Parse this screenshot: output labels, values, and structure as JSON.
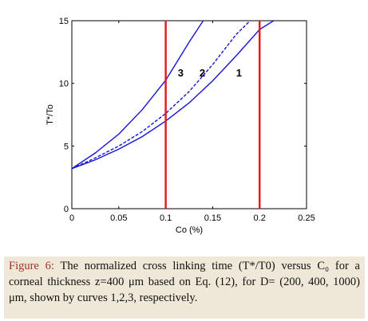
{
  "chart_data": {
    "type": "line",
    "xlabel": "Co (%)",
    "ylabel": "T*/To",
    "xlim": [
      0,
      0.25
    ],
    "ylim": [
      0,
      15
    ],
    "xticks": [
      "0",
      "0.05",
      "0.1",
      "0.15",
      "0.2",
      "0.25"
    ],
    "yticks": [
      "0",
      "5",
      "10",
      "15"
    ],
    "grid": false,
    "legend": "none",
    "curve_labels": [
      "1",
      "2",
      "3"
    ],
    "series": [
      {
        "name": "1",
        "style": "solid",
        "x": [
          0,
          0.025,
          0.05,
          0.075,
          0.1,
          0.125,
          0.15,
          0.175,
          0.2,
          0.215
        ],
        "y": [
          3.2,
          3.9,
          4.75,
          5.75,
          7.0,
          8.45,
          10.2,
          12.2,
          14.3,
          15.0
        ]
      },
      {
        "name": "2",
        "style": "dashed",
        "x": [
          0,
          0.025,
          0.05,
          0.075,
          0.1,
          0.125,
          0.15,
          0.175,
          0.19
        ],
        "y": [
          3.2,
          4.05,
          5.0,
          6.15,
          7.6,
          9.35,
          11.5,
          13.9,
          15.0
        ]
      },
      {
        "name": "3",
        "style": "solid",
        "x": [
          0,
          0.025,
          0.05,
          0.075,
          0.1,
          0.125,
          0.14
        ],
        "y": [
          3.2,
          4.45,
          5.95,
          7.9,
          10.25,
          13.3,
          15.0
        ]
      }
    ],
    "vlines": [
      0.1,
      0.2
    ],
    "colors": {
      "curve": "#1414d6",
      "vline": "#e51c1c",
      "axis": "#000000"
    }
  },
  "caption": {
    "figure_label": "Figure 6:",
    "text": "The normalized cross linking time (T*/T0) versus C₀ for a corneal thickness z=400 μm based on Eq. (12), for D= (200, 400, 1000) μm, shown by curves 1,2,3, respectively."
  }
}
